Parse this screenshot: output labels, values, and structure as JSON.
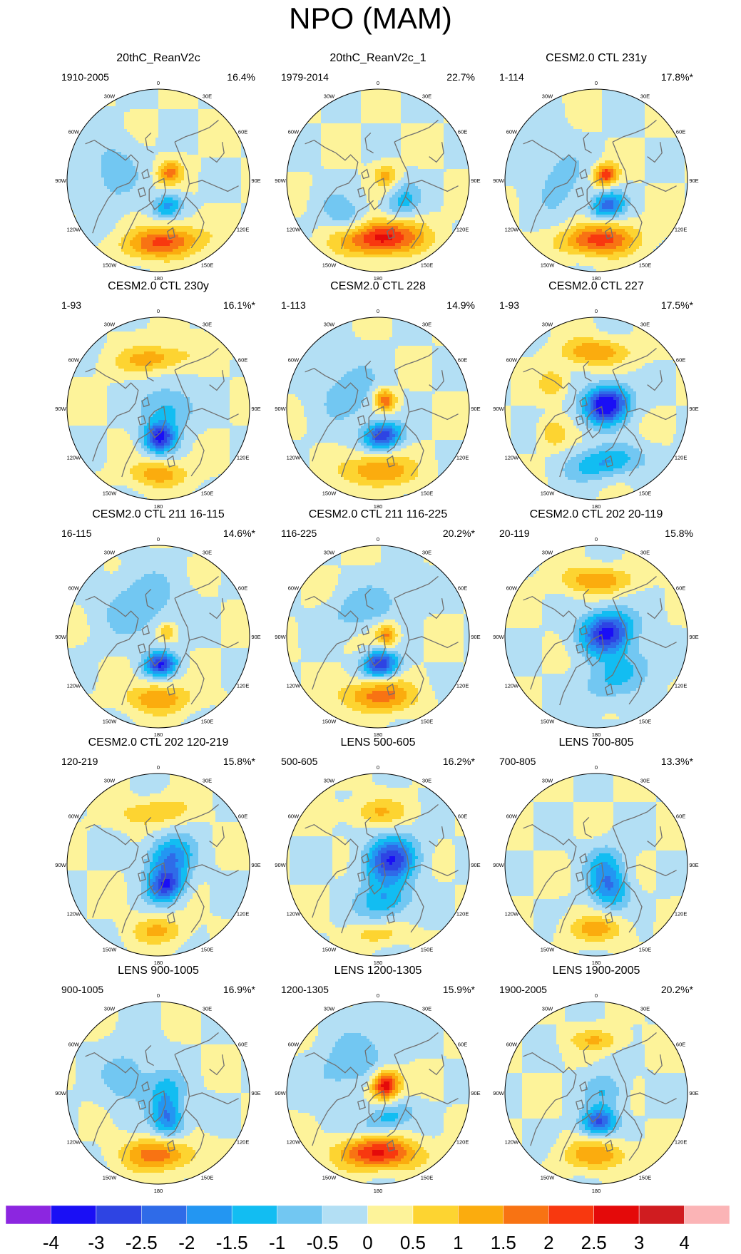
{
  "title": "NPO (MAM)",
  "lon_labels": [
    "180",
    "150E",
    "120E",
    "90E",
    "60E",
    "30E",
    "0",
    "30W",
    "60W",
    "90W",
    "120W",
    "150W"
  ],
  "colors": {
    "bin_colors": [
      "#8c26e0",
      "#1a0ff5",
      "#2e44e3",
      "#2f6be8",
      "#2396f2",
      "#12bdf2",
      "#72c7f2",
      "#b3dff4",
      "#fdf39a",
      "#fdd431",
      "#fbac0e",
      "#f87313",
      "#f8380f",
      "#e40a0a",
      "#d01c20",
      "#fbb4b6"
    ],
    "land_outline": "#707070",
    "outer_ring": "#000000"
  },
  "colorbar": {
    "levels": [
      "-4",
      "-3",
      "-2.5",
      "-2",
      "-1.5",
      "-1",
      "-0.5",
      "0",
      "0.5",
      "1",
      "1.5",
      "2",
      "2.5",
      "3",
      "4"
    ]
  },
  "panels": [
    {
      "title": "20thC_ReanV2c",
      "years": "1910-2005",
      "pct": "16.4%",
      "blobs": [
        {
          "lon": 175,
          "r": 0.68,
          "amp": 2.2,
          "sx": 0.28,
          "sy": 0.12
        },
        {
          "lon": 160,
          "r": 0.3,
          "amp": -1.6,
          "sx": 0.12,
          "sy": 0.09
        },
        {
          "lon": 55,
          "r": 0.15,
          "amp": 1.6,
          "sx": 0.09,
          "sy": 0.1
        },
        {
          "lon": -80,
          "r": 0.5,
          "amp": -0.8,
          "sx": 0.25,
          "sy": 0.2
        }
      ]
    },
    {
      "title": "20thC_ReanV2c_1",
      "years": "1979-2014",
      "pct": "22.7%",
      "blobs": [
        {
          "lon": 178,
          "r": 0.63,
          "amp": 3.0,
          "sx": 0.3,
          "sy": 0.13
        },
        {
          "lon": -140,
          "r": 0.55,
          "amp": -0.9,
          "sx": 0.25,
          "sy": 0.14
        },
        {
          "lon": 130,
          "r": 0.35,
          "amp": -1.2,
          "sx": 0.15,
          "sy": 0.12
        },
        {
          "lon": 60,
          "r": 0.1,
          "amp": 1.2,
          "sx": 0.09,
          "sy": 0.09
        }
      ]
    },
    {
      "title": "CESM2.0 CTL 231y",
      "years": "1-114",
      "pct": "17.8%*",
      "blobs": [
        {
          "lon": 178,
          "r": 0.65,
          "amp": 2.3,
          "sx": 0.28,
          "sy": 0.12
        },
        {
          "lon": 155,
          "r": 0.3,
          "amp": -2.2,
          "sx": 0.13,
          "sy": 0.1
        },
        {
          "lon": 60,
          "r": 0.12,
          "amp": 2.4,
          "sx": 0.08,
          "sy": 0.09
        },
        {
          "lon": -90,
          "r": 0.4,
          "amp": -0.7,
          "sx": 0.3,
          "sy": 0.2
        }
      ]
    },
    {
      "title": "CESM2.0 CTL 230y",
      "years": "1-93",
      "pct": "16.1%*",
      "blobs": [
        {
          "lon": 180,
          "r": 0.72,
          "amp": 1.3,
          "sx": 0.22,
          "sy": 0.1
        },
        {
          "lon": 178,
          "r": 0.32,
          "amp": -3.0,
          "sx": 0.12,
          "sy": 0.11
        },
        {
          "lon": 90,
          "r": 0.1,
          "amp": -1.2,
          "sx": 0.18,
          "sy": 0.2
        },
        {
          "lon": -5,
          "r": 0.55,
          "amp": 1.3,
          "sx": 0.28,
          "sy": 0.1
        }
      ]
    },
    {
      "title": "CESM2.0 CTL 228",
      "years": "1-113",
      "pct": "14.9%",
      "blobs": [
        {
          "lon": 180,
          "r": 0.68,
          "amp": 1.6,
          "sx": 0.26,
          "sy": 0.12
        },
        {
          "lon": 170,
          "r": 0.3,
          "amp": -2.9,
          "sx": 0.14,
          "sy": 0.1
        },
        {
          "lon": 40,
          "r": 0.12,
          "amp": 2.0,
          "sx": 0.09,
          "sy": 0.08
        },
        {
          "lon": -60,
          "r": 0.35,
          "amp": -0.8,
          "sx": 0.25,
          "sy": 0.25
        }
      ]
    },
    {
      "title": "CESM2.0 CTL 227",
      "years": "1-93",
      "pct": "17.5%*",
      "blobs": [
        {
          "lon": 70,
          "r": 0.12,
          "amp": -3.8,
          "sx": 0.14,
          "sy": 0.17
        },
        {
          "lon": 170,
          "r": 0.6,
          "amp": -1.6,
          "sx": 0.28,
          "sy": 0.12
        },
        {
          "lon": 0,
          "r": 0.62,
          "amp": 1.5,
          "sx": 0.25,
          "sy": 0.1
        },
        {
          "lon": -60,
          "r": 0.55,
          "amp": 1.0,
          "sx": 0.1,
          "sy": 0.1
        },
        {
          "lon": -120,
          "r": 0.55,
          "amp": 1.0,
          "sx": 0.1,
          "sy": 0.1
        }
      ]
    },
    {
      "title": "CESM2.0 CTL 211 16-115",
      "years": "16-115",
      "pct": "14.6%*",
      "blobs": [
        {
          "lon": 180,
          "r": 0.68,
          "amp": 1.4,
          "sx": 0.25,
          "sy": 0.11
        },
        {
          "lon": 175,
          "r": 0.3,
          "amp": -3.0,
          "sx": 0.12,
          "sy": 0.09
        },
        {
          "lon": 60,
          "r": 0.1,
          "amp": 1.0,
          "sx": 0.07,
          "sy": 0.07
        },
        {
          "lon": -30,
          "r": 0.4,
          "amp": -0.9,
          "sx": 0.3,
          "sy": 0.25
        }
      ]
    },
    {
      "title": "CESM2.0 CTL 211 116-225",
      "years": "116-225",
      "pct": "20.2%*",
      "blobs": [
        {
          "lon": 180,
          "r": 0.65,
          "amp": 1.8,
          "sx": 0.27,
          "sy": 0.12
        },
        {
          "lon": 175,
          "r": 0.3,
          "amp": -3.0,
          "sx": 0.13,
          "sy": 0.1
        },
        {
          "lon": 80,
          "r": 0.1,
          "amp": 1.7,
          "sx": 0.09,
          "sy": 0.08
        },
        {
          "lon": -20,
          "r": 0.35,
          "amp": -0.9,
          "sx": 0.3,
          "sy": 0.15
        }
      ]
    },
    {
      "title": "CESM2.0 CTL 202 20-119",
      "years": "20-119",
      "pct": "15.8%",
      "blobs": [
        {
          "lon": 70,
          "r": 0.12,
          "amp": -3.2,
          "sx": 0.16,
          "sy": 0.2
        },
        {
          "lon": 150,
          "r": 0.5,
          "amp": -1.2,
          "sx": 0.3,
          "sy": 0.15
        },
        {
          "lon": 0,
          "r": 0.62,
          "amp": 1.5,
          "sx": 0.26,
          "sy": 0.1
        }
      ]
    },
    {
      "title": "CESM2.0 CTL 202 120-219",
      "years": "120-219",
      "pct": "15.8%*",
      "blobs": [
        {
          "lon": 180,
          "r": 0.72,
          "amp": 1.1,
          "sx": 0.2,
          "sy": 0.1
        },
        {
          "lon": 160,
          "r": 0.25,
          "amp": -2.7,
          "sx": 0.14,
          "sy": 0.12
        },
        {
          "lon": 60,
          "r": 0.15,
          "amp": -2.0,
          "sx": 0.16,
          "sy": 0.18
        },
        {
          "lon": -5,
          "r": 0.58,
          "amp": 1.1,
          "sx": 0.25,
          "sy": 0.1
        }
      ]
    },
    {
      "title": "LENS 500-605",
      "years": "500-605",
      "pct": "16.2%*",
      "blobs": [
        {
          "lon": 70,
          "r": 0.15,
          "amp": -2.9,
          "sx": 0.17,
          "sy": 0.2
        },
        {
          "lon": 170,
          "r": 0.4,
          "amp": -1.5,
          "sx": 0.2,
          "sy": 0.14
        },
        {
          "lon": 180,
          "r": 0.76,
          "amp": 0.8,
          "sx": 0.2,
          "sy": 0.08
        },
        {
          "lon": 0,
          "r": 0.58,
          "amp": 1.0,
          "sx": 0.22,
          "sy": 0.1
        }
      ]
    },
    {
      "title": "LENS 700-805",
      "years": "700-805",
      "pct": "13.3%*",
      "blobs": [
        {
          "lon": 180,
          "r": 0.7,
          "amp": 1.2,
          "sx": 0.22,
          "sy": 0.1
        },
        {
          "lon": 150,
          "r": 0.3,
          "amp": -1.8,
          "sx": 0.14,
          "sy": 0.16
        },
        {
          "lon": 80,
          "r": 0.1,
          "amp": -1.1,
          "sx": 0.15,
          "sy": 0.15
        }
      ]
    },
    {
      "title": "LENS 900-1005",
      "years": "900-1005",
      "pct": "16.9%*",
      "blobs": [
        {
          "lon": 180,
          "r": 0.68,
          "amp": 1.8,
          "sx": 0.27,
          "sy": 0.12
        },
        {
          "lon": 160,
          "r": 0.3,
          "amp": -2.0,
          "sx": 0.12,
          "sy": 0.14
        },
        {
          "lon": 80,
          "r": 0.1,
          "amp": -1.2,
          "sx": 0.15,
          "sy": 0.15
        },
        {
          "lon": -60,
          "r": 0.4,
          "amp": -0.8,
          "sx": 0.25,
          "sy": 0.2
        }
      ]
    },
    {
      "title": "LENS 1200-1305",
      "years": "1200-1305",
      "pct": "15.9%*",
      "blobs": [
        {
          "lon": 180,
          "r": 0.66,
          "amp": 2.6,
          "sx": 0.3,
          "sy": 0.12
        },
        {
          "lon": 45,
          "r": 0.12,
          "amp": 3.0,
          "sx": 0.1,
          "sy": 0.11
        },
        {
          "lon": 160,
          "r": 0.3,
          "amp": -1.3,
          "sx": 0.2,
          "sy": 0.1
        },
        {
          "lon": -40,
          "r": 0.45,
          "amp": -0.9,
          "sx": 0.35,
          "sy": 0.2
        }
      ]
    },
    {
      "title": "LENS 1900-2005",
      "years": "1900-2005",
      "pct": "20.2%*",
      "blobs": [
        {
          "lon": 180,
          "r": 0.68,
          "amp": 1.4,
          "sx": 0.24,
          "sy": 0.11
        },
        {
          "lon": 175,
          "r": 0.32,
          "amp": -2.6,
          "sx": 0.13,
          "sy": 0.1
        },
        {
          "lon": 80,
          "r": 0.1,
          "amp": -1.0,
          "sx": 0.15,
          "sy": 0.15
        },
        {
          "lon": 0,
          "r": 0.58,
          "amp": 1.0,
          "sx": 0.2,
          "sy": 0.08
        }
      ]
    }
  ]
}
